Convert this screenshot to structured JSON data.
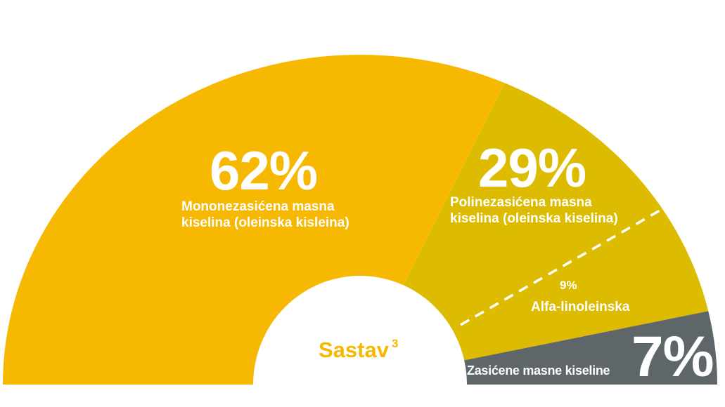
{
  "chart_data": {
    "type": "pie",
    "variant": "half-donut",
    "title": "Sastav",
    "title_superscript": "3",
    "slices": [
      {
        "label_line1": "Mononezasićena masna",
        "label_line2": "kiselina (oleinska kisleina)",
        "value": 62,
        "value_label": "62%",
        "color": "#F6B800"
      },
      {
        "label_line1": "Polinezasićena masna",
        "label_line2": "kiselina (oleinska kiselina)",
        "value": 29,
        "value_label": "29%",
        "color": "#DDBB00"
      },
      {
        "label": "Zasićene masne kiseline",
        "value": 7,
        "value_label": "7%",
        "color": "#5F666A"
      }
    ],
    "sub_slice": {
      "parent": "Polinezasićena masna kiselina",
      "value": 9,
      "value_label": "9%",
      "label": "Alfa-linoleinska"
    },
    "title_color": "#F6B800"
  }
}
